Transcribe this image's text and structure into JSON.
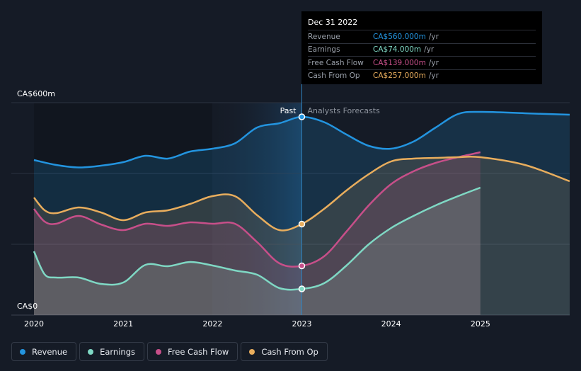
{
  "chart_data": {
    "type": "line",
    "ylim": [
      0,
      600
    ],
    "y_tick_labels": [
      "CA$600m",
      "CA$0"
    ],
    "x_axis_range": [
      2020,
      2026
    ],
    "x_tick_labels": [
      "2020",
      "2021",
      "2022",
      "2023",
      "2024",
      "2025"
    ],
    "divider_x": 2023.0,
    "past_label": "Past",
    "forecast_label": "Analysts Forecasts",
    "series": [
      {
        "name": "Revenue",
        "color": "#2394df",
        "points": [
          [
            2020,
            438
          ],
          [
            2020.25,
            424
          ],
          [
            2020.5,
            417
          ],
          [
            2020.75,
            422
          ],
          [
            2021,
            432
          ],
          [
            2021.25,
            450
          ],
          [
            2021.5,
            442
          ],
          [
            2021.75,
            462
          ],
          [
            2022,
            470
          ],
          [
            2022.25,
            485
          ],
          [
            2022.5,
            530
          ],
          [
            2022.75,
            542
          ],
          [
            2023,
            560
          ],
          [
            2023.25,
            545
          ],
          [
            2023.5,
            510
          ],
          [
            2023.75,
            478
          ],
          [
            2024,
            470
          ],
          [
            2024.25,
            490
          ],
          [
            2024.5,
            530
          ],
          [
            2024.75,
            568
          ],
          [
            2025,
            574
          ],
          [
            2025.5,
            570
          ],
          [
            2026,
            566
          ]
        ]
      },
      {
        "name": "Earnings",
        "color": "#7fd8c4",
        "points": [
          [
            2020,
            180
          ],
          [
            2020.12,
            115
          ],
          [
            2020.25,
            106
          ],
          [
            2020.5,
            106
          ],
          [
            2020.75,
            88
          ],
          [
            2021,
            92
          ],
          [
            2021.25,
            142
          ],
          [
            2021.5,
            138
          ],
          [
            2021.75,
            150
          ],
          [
            2022,
            140
          ],
          [
            2022.25,
            126
          ],
          [
            2022.5,
            114
          ],
          [
            2022.75,
            76
          ],
          [
            2023,
            74
          ],
          [
            2023.25,
            90
          ],
          [
            2023.5,
            140
          ],
          [
            2023.75,
            200
          ],
          [
            2024,
            246
          ],
          [
            2024.25,
            280
          ],
          [
            2024.5,
            310
          ],
          [
            2024.75,
            336
          ],
          [
            2025,
            360
          ]
        ]
      },
      {
        "name": "Free Cash Flow",
        "color": "#c74f89",
        "points": [
          [
            2020,
            300
          ],
          [
            2020.12,
            264
          ],
          [
            2020.25,
            258
          ],
          [
            2020.5,
            280
          ],
          [
            2020.75,
            256
          ],
          [
            2021,
            240
          ],
          [
            2021.25,
            258
          ],
          [
            2021.5,
            252
          ],
          [
            2021.75,
            262
          ],
          [
            2022,
            258
          ],
          [
            2022.25,
            258
          ],
          [
            2022.5,
            206
          ],
          [
            2022.75,
            146
          ],
          [
            2023,
            139
          ],
          [
            2023.25,
            166
          ],
          [
            2023.5,
            236
          ],
          [
            2023.75,
            310
          ],
          [
            2024,
            370
          ],
          [
            2024.25,
            406
          ],
          [
            2024.5,
            430
          ],
          [
            2024.75,
            446
          ],
          [
            2025,
            460
          ]
        ]
      },
      {
        "name": "Cash From Op",
        "color": "#e8ad5d",
        "points": [
          [
            2020,
            332
          ],
          [
            2020.12,
            296
          ],
          [
            2020.25,
            288
          ],
          [
            2020.5,
            304
          ],
          [
            2020.75,
            290
          ],
          [
            2021,
            268
          ],
          [
            2021.25,
            290
          ],
          [
            2021.5,
            296
          ],
          [
            2021.75,
            314
          ],
          [
            2022,
            336
          ],
          [
            2022.25,
            336
          ],
          [
            2022.5,
            282
          ],
          [
            2022.75,
            240
          ],
          [
            2023,
            257
          ],
          [
            2023.25,
            300
          ],
          [
            2023.5,
            352
          ],
          [
            2023.75,
            398
          ],
          [
            2024,
            434
          ],
          [
            2024.25,
            442
          ],
          [
            2024.5,
            444
          ],
          [
            2024.75,
            446
          ],
          [
            2025,
            446
          ],
          [
            2025.5,
            424
          ],
          [
            2026,
            378
          ]
        ]
      }
    ],
    "highlight": {
      "x": 2023.0,
      "values": {
        "Revenue": 560,
        "Earnings": 74,
        "Free Cash Flow": 139,
        "Cash From Op": 257
      }
    }
  },
  "tooltip": {
    "date": "Dec 31 2022",
    "rows": [
      {
        "label": "Revenue",
        "value": "CA$560.000m",
        "unit": "/yr",
        "color": "#2394df"
      },
      {
        "label": "Earnings",
        "value": "CA$74.000m",
        "unit": "/yr",
        "color": "#7fd8c4"
      },
      {
        "label": "Free Cash Flow",
        "value": "CA$139.000m",
        "unit": "/yr",
        "color": "#c74f89"
      },
      {
        "label": "Cash From Op",
        "value": "CA$257.000m",
        "unit": "/yr",
        "color": "#e8ad5d"
      }
    ]
  },
  "legend": [
    {
      "label": "Revenue",
      "color": "#2394df"
    },
    {
      "label": "Earnings",
      "color": "#7fd8c4"
    },
    {
      "label": "Free Cash Flow",
      "color": "#c74f89"
    },
    {
      "label": "Cash From Op",
      "color": "#e8ad5d"
    }
  ]
}
